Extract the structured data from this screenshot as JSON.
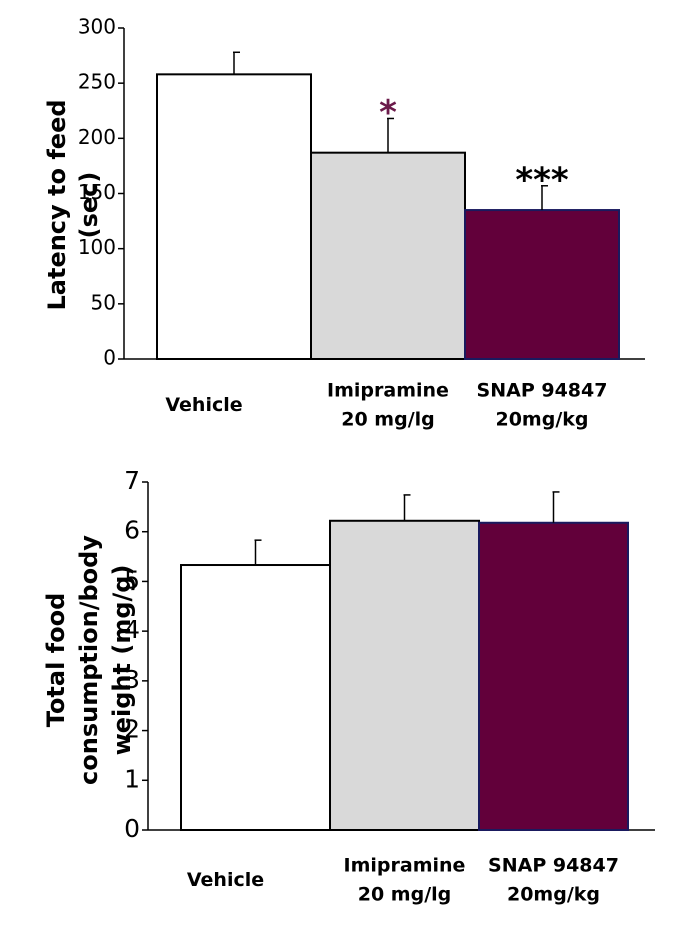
{
  "chart_data": [
    {
      "type": "bar",
      "ylabel": "Latency to feed\n(sec)",
      "categories": [
        "Vehicle",
        "Imipramine\n20 mg/lg",
        "SNAP 94847\n20mg/kg"
      ],
      "values": [
        258,
        187,
        135
      ],
      "errors": [
        20,
        31,
        22
      ],
      "colors": [
        "#ffffff",
        "#d9d9d9",
        "#62003a"
      ],
      "edge_colors": [
        "#000000",
        "#000000",
        "#1a1a5e"
      ],
      "annotations": [
        null,
        "*",
        "***"
      ],
      "annotation_colors": [
        null,
        "#6b1a4a",
        "#000000"
      ],
      "ylim": [
        0,
        300
      ],
      "yticks": [
        0,
        50,
        100,
        150,
        200,
        250,
        300
      ]
    },
    {
      "type": "bar",
      "ylabel": "Total food\nconsumption/body\nweight (mg/g)",
      "categories": [
        "Vehicle",
        "Imipramine\n20 mg/lg",
        "SNAP 94847\n20mg/kg"
      ],
      "values": [
        5.33,
        6.22,
        6.18
      ],
      "errors": [
        0.5,
        0.52,
        0.62
      ],
      "colors": [
        "#ffffff",
        "#d9d9d9",
        "#62003a"
      ],
      "edge_colors": [
        "#000000",
        "#000000",
        "#1a1a5e"
      ],
      "ylim": [
        0,
        7
      ],
      "yticks": [
        0,
        1,
        2,
        3,
        4,
        5,
        6,
        7
      ]
    }
  ]
}
